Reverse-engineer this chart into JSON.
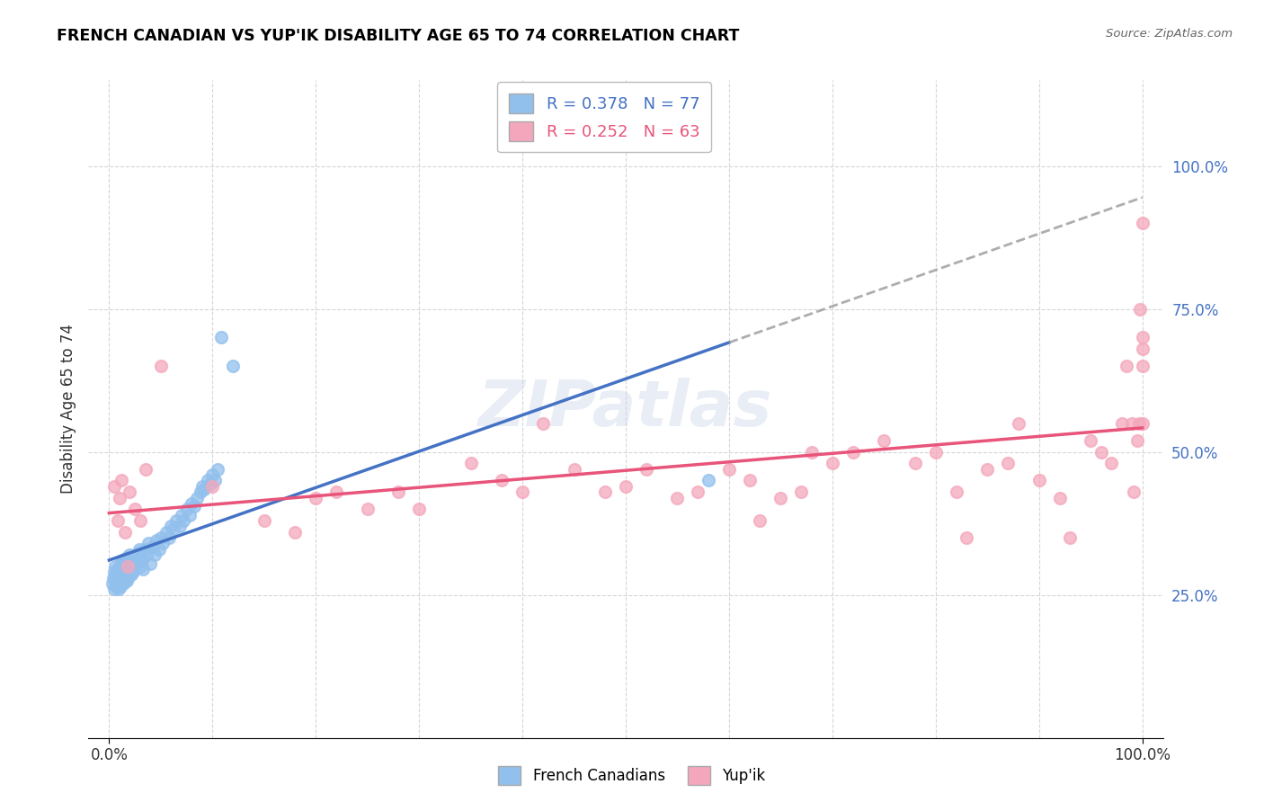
{
  "title": "FRENCH CANADIAN VS YUP'IK DISABILITY AGE 65 TO 74 CORRELATION CHART",
  "source": "Source: ZipAtlas.com",
  "ylabel": "Disability Age 65 to 74",
  "legend_label1": "French Canadians",
  "legend_label2": "Yup'ik",
  "r1": 0.378,
  "n1": 77,
  "r2": 0.252,
  "n2": 63,
  "color1": "#92C0ED",
  "color2": "#F4A7BC",
  "line_color1": "#4472C4",
  "line_color2": "#E8547A",
  "dash_color": "#999999",
  "background_color": "#FFFFFF",
  "watermark": "ZIPatlas",
  "xtick_color": "#333333",
  "ytick_color": "#4472C4",
  "blue_x": [
    0.3,
    0.4,
    0.5,
    0.5,
    0.6,
    0.6,
    0.7,
    0.7,
    0.8,
    0.8,
    0.9,
    0.9,
    1.0,
    1.0,
    1.1,
    1.1,
    1.2,
    1.2,
    1.3,
    1.3,
    1.4,
    1.4,
    1.5,
    1.5,
    1.6,
    1.6,
    1.7,
    1.7,
    1.8,
    1.8,
    2.0,
    2.0,
    2.1,
    2.2,
    2.3,
    2.5,
    2.6,
    2.8,
    2.9,
    3.0,
    3.0,
    3.2,
    3.3,
    3.5,
    3.6,
    3.8,
    4.0,
    4.2,
    4.4,
    4.6,
    4.8,
    5.0,
    5.2,
    5.5,
    5.8,
    6.0,
    6.2,
    6.5,
    6.8,
    7.0,
    7.2,
    7.5,
    7.8,
    8.0,
    8.2,
    8.5,
    8.8,
    9.0,
    9.2,
    9.5,
    9.8,
    10.0,
    10.2,
    10.5,
    10.8,
    12.0,
    58.0
  ],
  "blue_y": [
    27.0,
    28.0,
    26.0,
    29.0,
    27.5,
    30.0,
    26.5,
    28.5,
    27.0,
    29.5,
    26.0,
    28.0,
    27.0,
    29.0,
    26.5,
    30.5,
    27.0,
    29.5,
    27.5,
    31.0,
    27.0,
    30.0,
    27.5,
    31.0,
    28.0,
    30.5,
    27.5,
    31.5,
    28.0,
    30.0,
    29.0,
    32.0,
    28.5,
    31.0,
    29.0,
    30.5,
    32.0,
    31.5,
    33.0,
    30.0,
    32.5,
    31.0,
    29.5,
    33.0,
    32.0,
    34.0,
    30.5,
    33.5,
    32.0,
    34.5,
    33.0,
    35.0,
    34.0,
    36.0,
    35.0,
    37.0,
    36.5,
    38.0,
    37.0,
    39.0,
    38.0,
    40.0,
    39.0,
    41.0,
    40.5,
    42.0,
    43.0,
    44.0,
    43.5,
    45.0,
    44.5,
    46.0,
    45.0,
    47.0,
    70.0,
    65.0,
    45.0
  ],
  "pink_x": [
    0.5,
    0.8,
    1.0,
    1.2,
    1.5,
    1.8,
    2.0,
    2.5,
    3.0,
    3.5,
    5.0,
    10.0,
    15.0,
    18.0,
    20.0,
    22.0,
    25.0,
    28.0,
    30.0,
    35.0,
    38.0,
    40.0,
    42.0,
    45.0,
    48.0,
    50.0,
    52.0,
    55.0,
    57.0,
    60.0,
    62.0,
    63.0,
    65.0,
    67.0,
    68.0,
    70.0,
    72.0,
    75.0,
    78.0,
    80.0,
    82.0,
    83.0,
    85.0,
    87.0,
    88.0,
    90.0,
    92.0,
    93.0,
    95.0,
    96.0,
    97.0,
    98.0,
    98.5,
    99.0,
    99.2,
    99.5,
    99.7,
    99.8,
    100.0,
    100.0,
    100.0,
    100.0,
    100.0
  ],
  "pink_y": [
    44.0,
    38.0,
    42.0,
    45.0,
    36.0,
    30.0,
    43.0,
    40.0,
    38.0,
    47.0,
    65.0,
    44.0,
    38.0,
    36.0,
    42.0,
    43.0,
    40.0,
    43.0,
    40.0,
    48.0,
    45.0,
    43.0,
    55.0,
    47.0,
    43.0,
    44.0,
    47.0,
    42.0,
    43.0,
    47.0,
    45.0,
    38.0,
    42.0,
    43.0,
    50.0,
    48.0,
    50.0,
    52.0,
    48.0,
    50.0,
    43.0,
    35.0,
    47.0,
    48.0,
    55.0,
    45.0,
    42.0,
    35.0,
    52.0,
    50.0,
    48.0,
    55.0,
    65.0,
    55.0,
    43.0,
    52.0,
    55.0,
    75.0,
    55.0,
    65.0,
    68.0,
    70.0,
    90.0
  ],
  "xlim": [
    -2,
    102
  ],
  "ylim": [
    0,
    115
  ],
  "xticks": [
    0,
    100
  ],
  "xticklabels": [
    "0.0%",
    "100.0%"
  ],
  "yticks": [
    25,
    50,
    75,
    100
  ],
  "yticklabels": [
    "25.0%",
    "50.0%",
    "75.0%",
    "100.0%"
  ]
}
